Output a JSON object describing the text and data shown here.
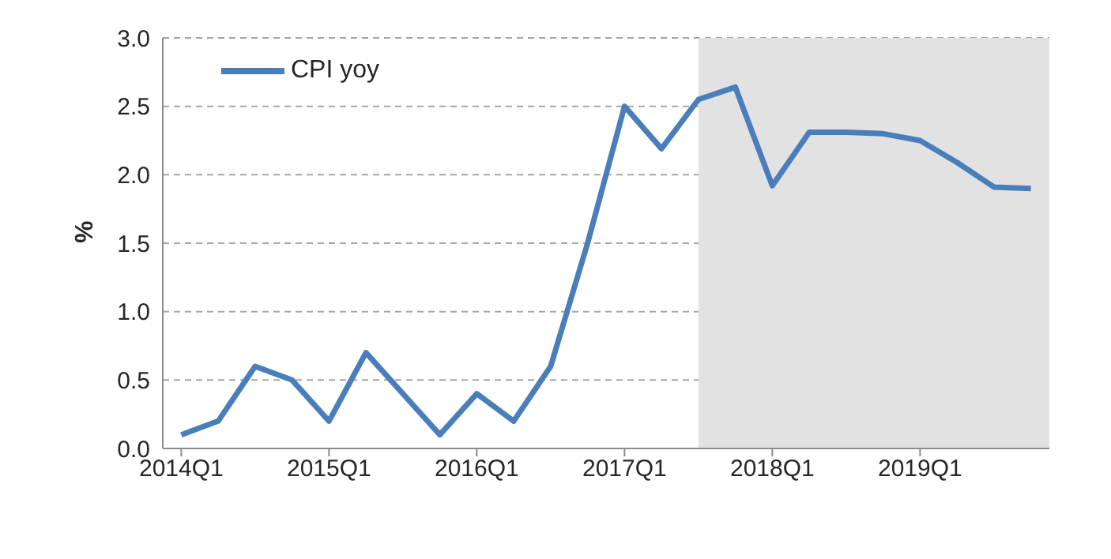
{
  "chart_data": {
    "type": "line",
    "ylabel": "%",
    "categories": [
      "2014Q1",
      null,
      null,
      null,
      "2015Q1",
      null,
      null,
      null,
      "2016Q1",
      null,
      null,
      null,
      "2017Q1",
      null,
      null,
      null,
      "2018Q1",
      null,
      null,
      null,
      "2019Q1",
      null,
      null,
      null
    ],
    "series": [
      {
        "name": "CPI yoy",
        "color": "#4a7ebb",
        "values": [
          0.1,
          0.2,
          0.6,
          0.5,
          0.2,
          0.7,
          0.4,
          0.1,
          0.4,
          0.2,
          0.6,
          1.5,
          2.5,
          2.19,
          2.55,
          2.64,
          1.92,
          2.31,
          2.31,
          2.3,
          2.25,
          2.09,
          1.91,
          1.9
        ]
      }
    ],
    "ylim": [
      0,
      3
    ],
    "yticks": [
      {
        "value": 0,
        "label": "0.0"
      },
      {
        "value": 0.5,
        "label": "0.5"
      },
      {
        "value": 1,
        "label": "1.0"
      },
      {
        "value": 1.5,
        "label": "1.5"
      },
      {
        "value": 2,
        "label": "2.0"
      },
      {
        "value": 2.5,
        "label": "2.5"
      },
      {
        "value": 3,
        "label": "3.0"
      }
    ],
    "grid": "y",
    "legend": "top left",
    "marker": "none",
    "line_style": "solid"
  }
}
